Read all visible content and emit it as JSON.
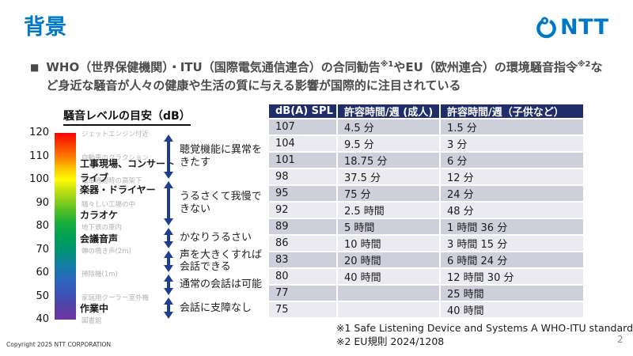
{
  "slide": {
    "title": "背景",
    "page_number": "2",
    "copyright": "Copyright 2025 NTT CORPORATION"
  },
  "logo": {
    "text": "NTT"
  },
  "colors": {
    "ntt_blue": "#0078C8",
    "table_header_navy": "#1F2E6B",
    "arrow_navy": "#1E3F8F",
    "band_dark": "#CDCFDB",
    "band_light": "#EAEAF0"
  },
  "bullet": {
    "marker": "■",
    "seg1": "WHO（世界保健機関）・ITU（国際電気通信連合）の合同勧告",
    "sup1": "※1",
    "seg2": "やEU（欧州連合）の環境騒音指令",
    "sup2": "※2",
    "seg3": "など身近な騒音が人々の健康や生活の質に与える影響が国際的に注目されている"
  },
  "noise_scale": {
    "title": "騒音レベルの目安（dB）",
    "axis_ticks": [
      120,
      110,
      100,
      90,
      80,
      70,
      60,
      50,
      40
    ],
    "reference_labels": [
      {
        "db": 120,
        "text": "ジェットエンジン付近"
      },
      {
        "db": 110,
        "text": "自動車のクラクション"
      },
      {
        "db": 100,
        "text": "電車通過時の高架下"
      },
      {
        "db": 90,
        "text": "騒々しい工場の中"
      },
      {
        "db": 80,
        "text": "地下鉄の車内"
      },
      {
        "db": 70,
        "text": "蝉の鳴き声(2m)"
      },
      {
        "db": 60,
        "text": "掃除機(1m)"
      },
      {
        "db": 50,
        "text": "家庭用クーラー室外機"
      },
      {
        "db": 40,
        "text": "図書館"
      }
    ],
    "item_labels": [
      {
        "db": 107,
        "text": "工事現場、コンサート"
      },
      {
        "db": 101,
        "text": "ライブ"
      },
      {
        "db": 96,
        "text": "楽器・ドライヤー"
      },
      {
        "db": 85,
        "text": "カラオケ"
      },
      {
        "db": 75,
        "text": "会議音声"
      },
      {
        "db": 45,
        "text": "作業中"
      }
    ],
    "annotations": [
      {
        "from": 120,
        "to": 100,
        "label": "聴覚機能に異常をきたす"
      },
      {
        "from": 100,
        "to": 80,
        "label": "うるさくて我慢できない"
      },
      {
        "from": 80,
        "to": 70,
        "label": "かなりうるさい"
      },
      {
        "from": 70,
        "to": 60,
        "label": "声を大きくすれば会話できる"
      },
      {
        "from": 60,
        "to": 50,
        "label": "通常の会話は可能"
      },
      {
        "from": 50,
        "to": 40,
        "label": "会話に支障なし"
      }
    ]
  },
  "table": {
    "headers": [
      "dB(A) SPL",
      "許容時間/週 (成人)",
      "許容時間/週（子供など）"
    ],
    "rows": [
      [
        "107",
        "4.5 分",
        "1.5 分"
      ],
      [
        "104",
        "9.5 分",
        "3 分"
      ],
      [
        "101",
        "18.75 分",
        "6 分"
      ],
      [
        "98",
        "37.5 分",
        "12 分"
      ],
      [
        "95",
        "75 分",
        "24 分"
      ],
      [
        "92",
        "2.5 時間",
        "48 分"
      ],
      [
        "89",
        "5 時間",
        "1 時間 36 分"
      ],
      [
        "86",
        "10 時間",
        "3 時間 15 分"
      ],
      [
        "83",
        "20 時間",
        "6 時間 24 分"
      ],
      [
        "80",
        "40 時間",
        "12 時間 30 分"
      ],
      [
        "77",
        "",
        "25 時間"
      ],
      [
        "75",
        "",
        "40 時間"
      ]
    ]
  },
  "footnotes": [
    "※1 Safe Listening Device and Systems A WHO-ITU standard",
    "※2 EU規則 2024/1208"
  ],
  "chart_data": [
    {
      "type": "heatmap",
      "title": "騒音レベルの目安（dB）",
      "ylabel": "dB",
      "ylim": [
        40,
        120
      ],
      "tick_labels": [
        120,
        110,
        100,
        90,
        80,
        70,
        60,
        50,
        40
      ],
      "colormap_top_to_bottom": [
        "red",
        "orange",
        "yellow",
        "green",
        "teal",
        "blue",
        "purple"
      ],
      "reference_points": [
        {
          "db": 120,
          "example": "ジェットエンジン付近"
        },
        {
          "db": 110,
          "example": "自動車のクラクション"
        },
        {
          "db": 100,
          "example": "電車通過時の高架下"
        },
        {
          "db": 90,
          "example": "騒々しい工場の中"
        },
        {
          "db": 80,
          "example": "地下鉄の車内"
        },
        {
          "db": 70,
          "example": "蝉の鳴き声(2m)"
        },
        {
          "db": 60,
          "example": "掃除機(1m)"
        },
        {
          "db": 50,
          "example": "家庭用クーラー室外機"
        },
        {
          "db": 40,
          "example": "図書館"
        }
      ],
      "highlighted_items": [
        {
          "db": 107,
          "item": "工事現場、コンサート"
        },
        {
          "db": 101,
          "item": "ライブ"
        },
        {
          "db": 96,
          "item": "楽器・ドライヤー"
        },
        {
          "db": 85,
          "item": "カラオケ"
        },
        {
          "db": 75,
          "item": "会議音声"
        },
        {
          "db": 45,
          "item": "作業中"
        }
      ],
      "range_annotations": [
        {
          "from": 120,
          "to": 100,
          "label": "聴覚機能に異常をきたす"
        },
        {
          "from": 100,
          "to": 80,
          "label": "うるさくて我慢できない"
        },
        {
          "from": 80,
          "to": 70,
          "label": "かなりうるさい"
        },
        {
          "from": 70,
          "to": 60,
          "label": "声を大きくすれば会話できる"
        },
        {
          "from": 60,
          "to": 50,
          "label": "通常の会話は可能"
        },
        {
          "from": 50,
          "to": 40,
          "label": "会話に支障なし"
        }
      ]
    },
    {
      "type": "table",
      "columns": [
        "dB(A) SPL",
        "許容時間/週 (成人)",
        "許容時間/週（子供など）"
      ],
      "rows": [
        [
          107,
          "4.5 分",
          "1.5 分"
        ],
        [
          104,
          "9.5 分",
          "3 分"
        ],
        [
          101,
          "18.75 分",
          "6 分"
        ],
        [
          98,
          "37.5 分",
          "12 分"
        ],
        [
          95,
          "75 分",
          "24 分"
        ],
        [
          92,
          "2.5 時間",
          "48 分"
        ],
        [
          89,
          "5 時間",
          "1 時間 36 分"
        ],
        [
          86,
          "10 時間",
          "3 時間 15 分"
        ],
        [
          83,
          "20 時間",
          "6 時間 24 分"
        ],
        [
          80,
          "40 時間",
          "12 時間 30 分"
        ],
        [
          77,
          "",
          "25 時間"
        ],
        [
          75,
          "",
          "40 時間"
        ]
      ]
    }
  ]
}
